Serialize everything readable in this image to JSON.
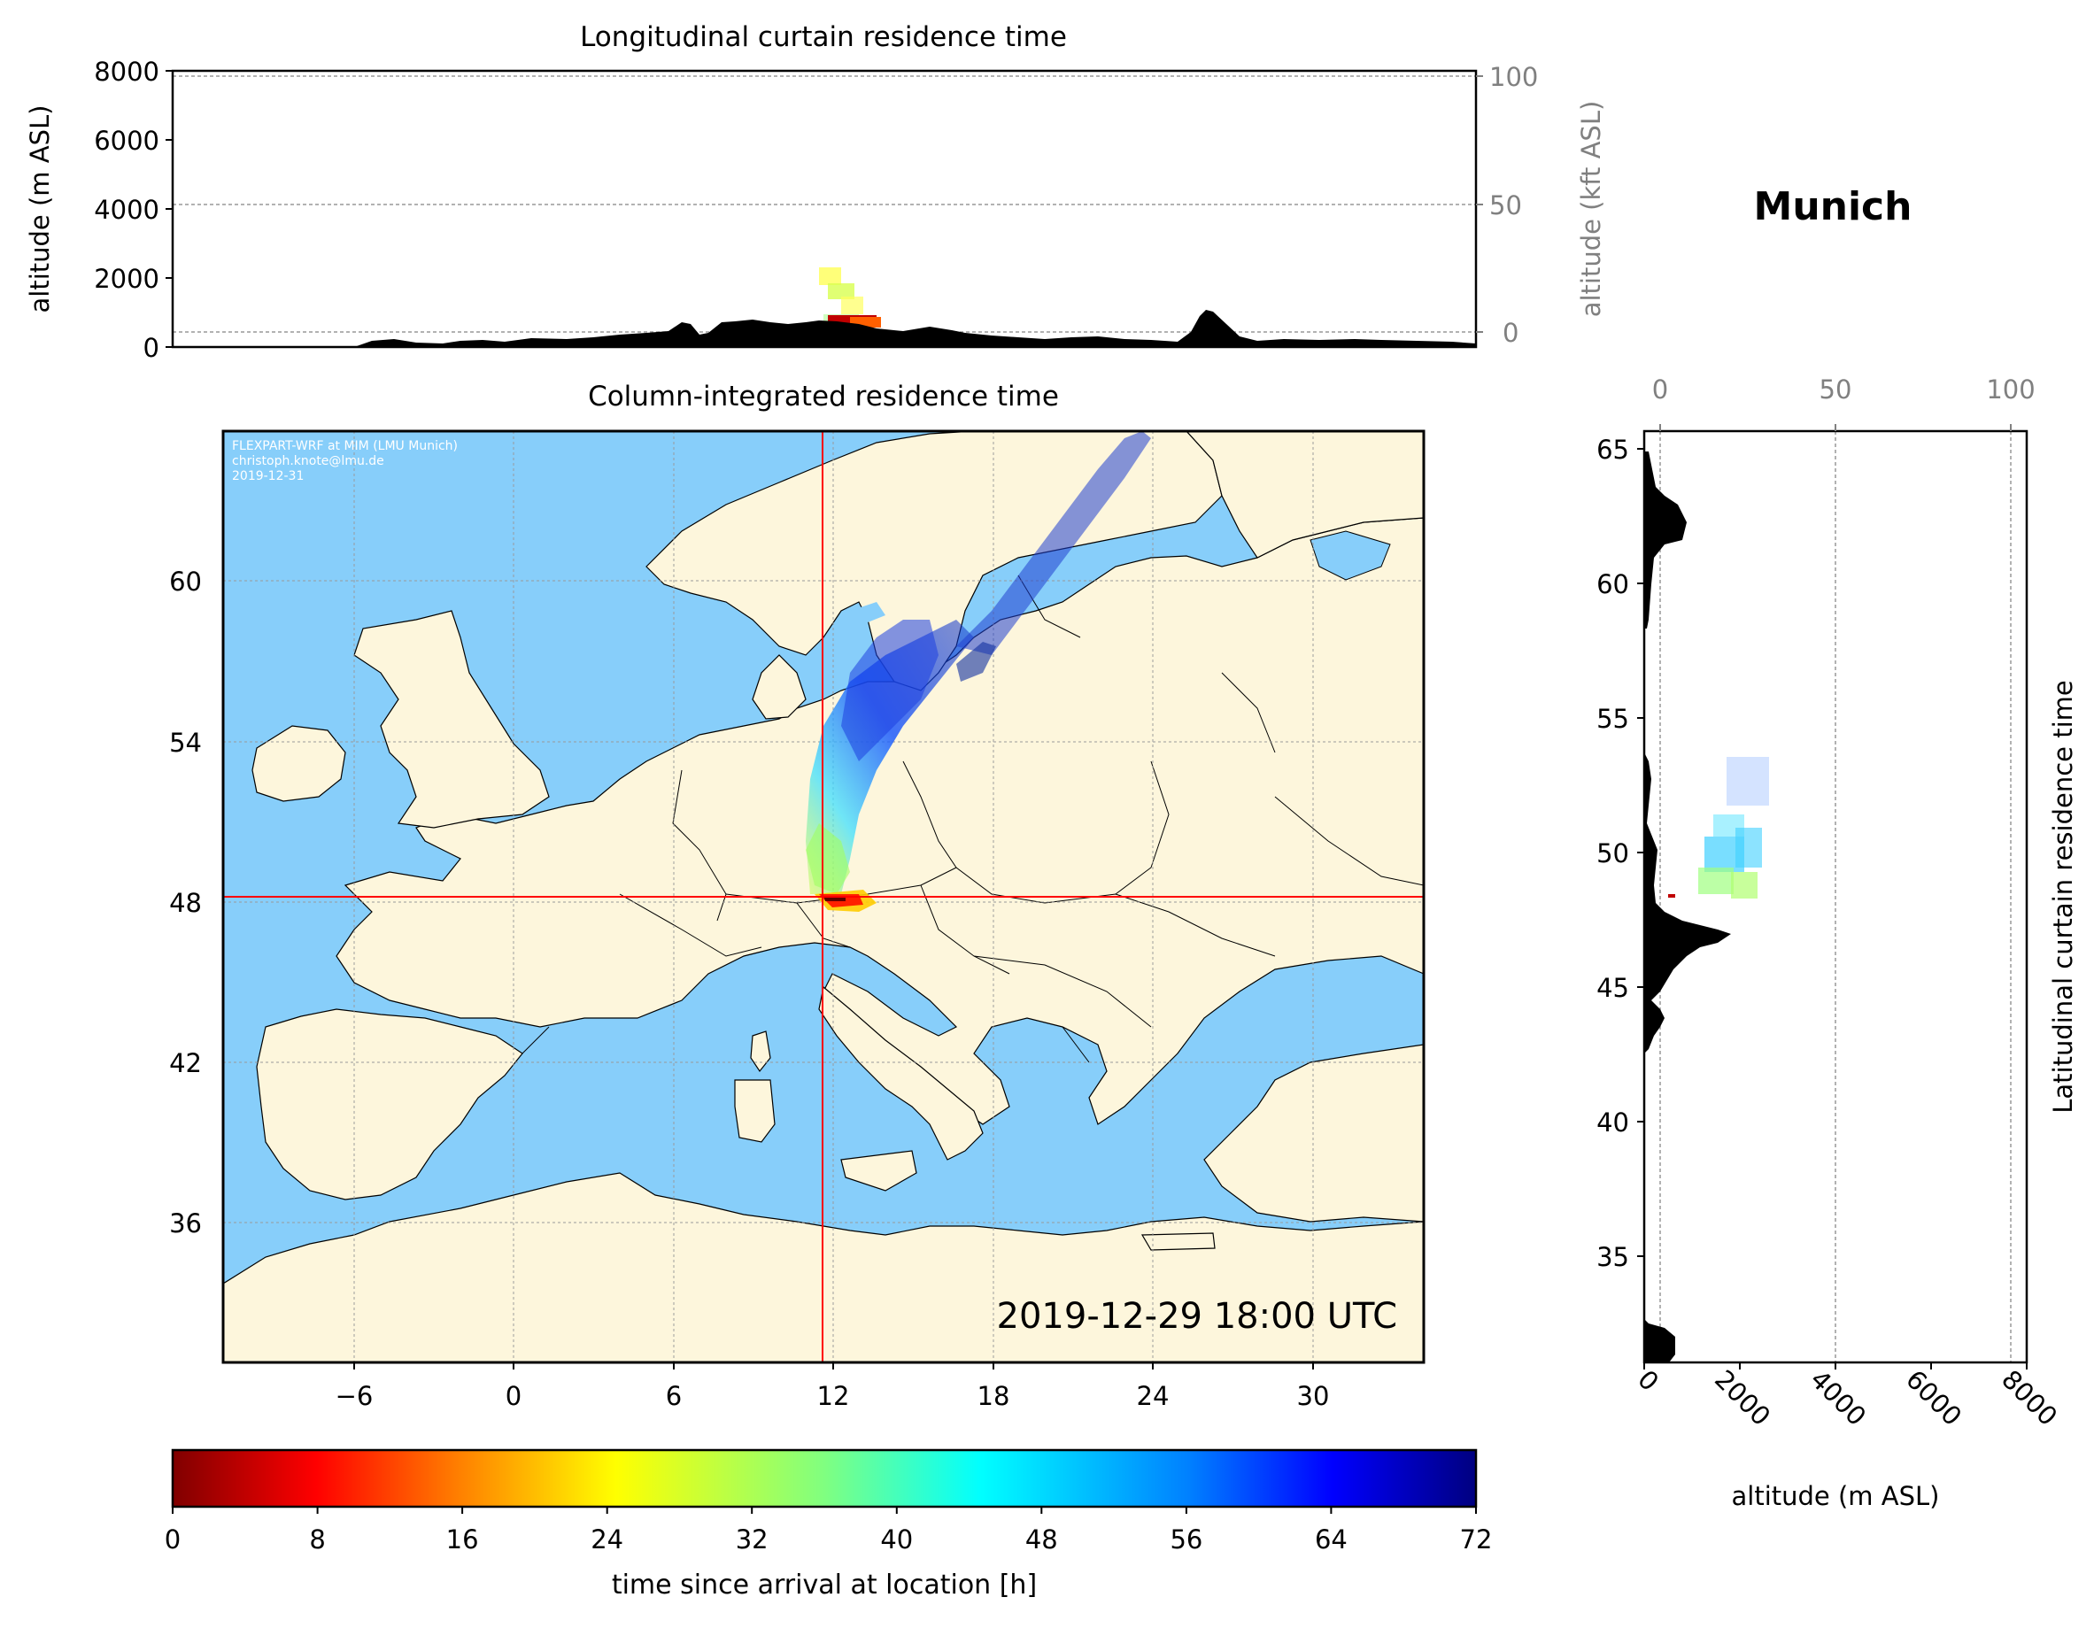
{
  "location_title": "Munich",
  "top_panel": {
    "title": "Longitudinal curtain residence time",
    "ylabel": "altitude (m ASL)",
    "ylabel_right": "altitude (kft ASL)",
    "yticks": [
      "0",
      "2000",
      "4000",
      "6000",
      "8000"
    ],
    "yticks_right": [
      "0",
      "50",
      "100"
    ]
  },
  "map_panel": {
    "title": "Column-integrated residence time",
    "credits": [
      "FLEXPART-WRF at MIM (LMU Munich)",
      "christoph.knote@lmu.de",
      "2019-12-31"
    ],
    "timestamp": "2019-12-29 18:00 UTC",
    "xticks": [
      "−6",
      "0",
      "6",
      "12",
      "18",
      "24",
      "30"
    ],
    "yticks": [
      "36",
      "42",
      "48",
      "54",
      "60"
    ],
    "release_point": {
      "lon": 11.6,
      "lat": 48.1
    },
    "colors": {
      "land": "#fdf6dc",
      "water": "#87cefa",
      "crosshair": "#ff0000"
    }
  },
  "right_panel": {
    "ylabel_right": "Latitudinal curtain residence time",
    "xlabel": "altitude (m ASL)",
    "xticks": [
      "0",
      "2000",
      "4000",
      "6000",
      "8000"
    ],
    "xticks_top": [
      "0",
      "50",
      "100"
    ],
    "yticks": [
      "35",
      "40",
      "45",
      "50",
      "55",
      "60",
      "65"
    ]
  },
  "colorbar": {
    "label": "time since arrival at location [h]",
    "ticks": [
      "0",
      "8",
      "16",
      "24",
      "32",
      "40",
      "48",
      "56",
      "64",
      "72"
    ],
    "colormap": "jet_r"
  }
}
